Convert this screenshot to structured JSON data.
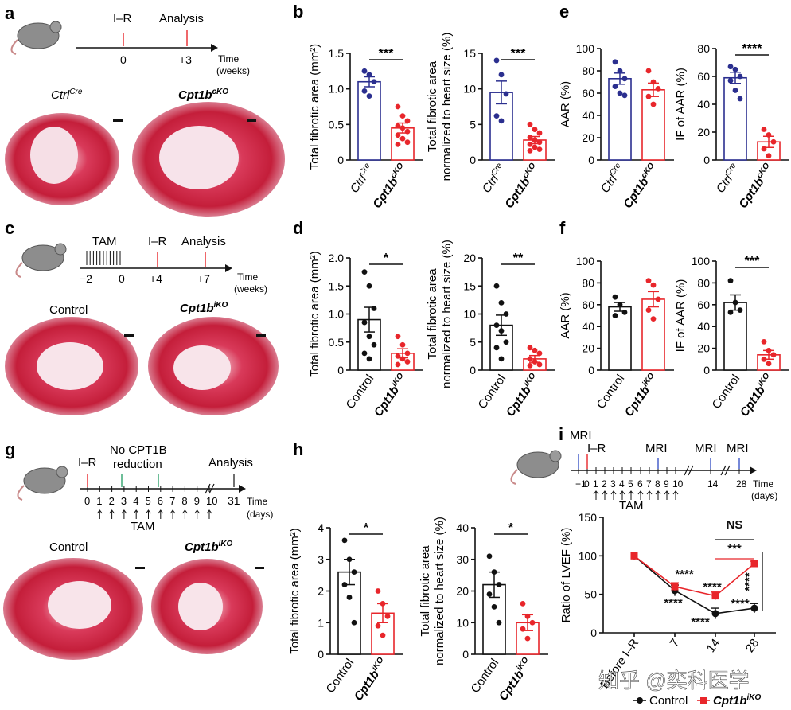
{
  "panels": [
    {
      "letter": "a",
      "text": [
        "I–R",
        "Analysis",
        "0",
        "+3",
        "Time",
        "(weeks)",
        "Ctrl",
        "Cre",
        "Cpt1b",
        "cKO"
      ]
    },
    {
      "letter": "c",
      "text": [
        "TAM",
        "I–R",
        "Analysis",
        "−2",
        "0",
        "+4",
        "+7",
        "Time",
        "(weeks)",
        "Control",
        "Cpt1b",
        "iKO"
      ]
    },
    {
      "letter": "g",
      "text": [
        "I–R",
        "No CPT1B",
        "reduction",
        "Analysis",
        "0",
        "1",
        "2",
        "3",
        "4",
        "5",
        "6",
        "7",
        "8",
        "9",
        "10",
        "31",
        "Time",
        "(days)",
        "TAM",
        "Control",
        "Cpt1b",
        "iKO"
      ]
    },
    {
      "letter": "i",
      "text": [
        "MRI",
        "I–R",
        "MRI",
        "MRI",
        "MRI",
        "−1",
        "0",
        "1",
        "2",
        "3",
        "4",
        "5",
        "6",
        "7",
        "8",
        "9",
        "10",
        "14",
        "28",
        "Time",
        "(days)",
        "TAM"
      ]
    }
  ],
  "watermark": "知乎 @奕科医学",
  "colors": {
    "control": "#2b2f8f",
    "ko": "#e8262b",
    "black": "#111111",
    "heart": "#c41e3a"
  },
  "chart_data": [
    {
      "id": "b1",
      "panel": "b",
      "type": "bar",
      "ylabel": "Total fibrotic area (mm²)",
      "ylim": [
        0,
        1.5
      ],
      "yticks": [
        "0",
        "0.5",
        "1.0",
        "1.5"
      ],
      "categories": [
        "Ctrl",
        "Cpt1b"
      ],
      "cat_sup": [
        "Cre",
        "cKO"
      ],
      "italic": true,
      "values": [
        1.1,
        0.45
      ],
      "sem": [
        0.07,
        0.07
      ],
      "points": [
        [
          1.25,
          1.2,
          1.1,
          0.97,
          0.9
        ],
        [
          0.75,
          0.62,
          0.55,
          0.48,
          0.45,
          0.4,
          0.35,
          0.3,
          0.25,
          0.22
        ]
      ],
      "colors": [
        "control",
        "ko"
      ],
      "sig": "***"
    },
    {
      "id": "b2",
      "panel": "b",
      "type": "bar",
      "ylabel": "Total fibrotic area normalized to heart size (%)",
      "ylim": [
        0,
        15
      ],
      "yticks": [
        "0",
        "5",
        "10",
        "15"
      ],
      "categories": [
        "Ctrl",
        "Cpt1b"
      ],
      "cat_sup": [
        "Cre",
        "cKO"
      ],
      "italic": true,
      "values": [
        9.5,
        2.8
      ],
      "sem": [
        1.6,
        0.5
      ],
      "points": [
        [
          14,
          12,
          9.3,
          6.2,
          5.5
        ],
        [
          5,
          4.3,
          3.8,
          3.2,
          2.8,
          2.5,
          2.2,
          1.8,
          1.5,
          1.3
        ]
      ],
      "colors": [
        "control",
        "ko"
      ],
      "sig": "***"
    },
    {
      "id": "e1",
      "panel": "e",
      "type": "bar",
      "ylabel": "AAR (%)",
      "ylim": [
        0,
        100
      ],
      "yticks": [
        "0",
        "20",
        "40",
        "60",
        "80",
        "100"
      ],
      "categories": [
        "Ctrl",
        "Cpt1b"
      ],
      "cat_sup": [
        "Cre",
        "cKO"
      ],
      "italic": true,
      "values": [
        73,
        63
      ],
      "sem": [
        5,
        6
      ],
      "points": [
        [
          88,
          80,
          73,
          66,
          60,
          58
        ],
        [
          80,
          70,
          64,
          57,
          50
        ]
      ],
      "colors": [
        "control",
        "ko"
      ],
      "sig": ""
    },
    {
      "id": "e2",
      "panel": "e",
      "type": "bar",
      "ylabel": "IF of AAR (%)",
      "ylim": [
        0,
        80
      ],
      "yticks": [
        "0",
        "20",
        "40",
        "60",
        "80"
      ],
      "categories": [
        "Ctrl",
        "Cpt1b"
      ],
      "cat_sup": [
        "Cre",
        "cKO"
      ],
      "italic": true,
      "values": [
        59,
        13
      ],
      "sem": [
        4,
        4
      ],
      "points": [
        [
          67,
          65,
          60,
          57,
          50,
          44
        ],
        [
          22,
          18,
          13,
          8,
          3
        ]
      ],
      "colors": [
        "control",
        "ko"
      ],
      "sig": "****"
    },
    {
      "id": "d1",
      "panel": "d",
      "type": "bar",
      "ylabel": "Total fibrotic area (mm²)",
      "ylim": [
        0,
        2.0
      ],
      "yticks": [
        "0",
        "0.5",
        "1.0",
        "1.5",
        "2.0"
      ],
      "categories": [
        "Control",
        "Cpt1b"
      ],
      "cat_sup": [
        "",
        "iKO"
      ],
      "italic": false,
      "values": [
        0.9,
        0.3
      ],
      "sem": [
        0.22,
        0.08
      ],
      "points": [
        [
          1.75,
          1.5,
          1.1,
          0.85,
          0.6,
          0.45,
          0.3,
          0.2
        ],
        [
          0.6,
          0.45,
          0.3,
          0.25,
          0.2,
          0.15,
          0.1
        ]
      ],
      "colors": [
        "black",
        "ko"
      ],
      "sig": "*"
    },
    {
      "id": "d2",
      "panel": "d",
      "type": "bar",
      "ylabel": "Total fibrotic area normalized to heart size (%)",
      "ylim": [
        0,
        20
      ],
      "yticks": [
        "0",
        "5",
        "10",
        "15",
        "20"
      ],
      "categories": [
        "Control",
        "Cpt1b"
      ],
      "cat_sup": [
        "",
        "iKO"
      ],
      "italic": false,
      "values": [
        8,
        2
      ],
      "sem": [
        1.8,
        0.6
      ],
      "points": [
        [
          15,
          12,
          10,
          8,
          7,
          5,
          4,
          2
        ],
        [
          4,
          3.5,
          3,
          2,
          1.5,
          1,
          0.8
        ]
      ],
      "colors": [
        "black",
        "ko"
      ],
      "sig": "**"
    },
    {
      "id": "f1",
      "panel": "f",
      "type": "bar",
      "ylabel": "AAR (%)",
      "ylim": [
        0,
        100
      ],
      "yticks": [
        "0",
        "20",
        "40",
        "60",
        "80",
        "100"
      ],
      "categories": [
        "Control",
        "Cpt1b"
      ],
      "cat_sup": [
        "",
        "iKO"
      ],
      "italic": false,
      "values": [
        58,
        65
      ],
      "sem": [
        4,
        7
      ],
      "points": [
        [
          67,
          60,
          53,
          50
        ],
        [
          82,
          78,
          65,
          55,
          47
        ]
      ],
      "colors": [
        "black",
        "ko"
      ],
      "sig": ""
    },
    {
      "id": "f2",
      "panel": "f",
      "type": "bar",
      "ylabel": "IF of AAR (%)",
      "ylim": [
        0,
        100
      ],
      "yticks": [
        "0",
        "20",
        "40",
        "60",
        "80",
        "100"
      ],
      "categories": [
        "Control",
        "Cpt1b"
      ],
      "cat_sup": [
        "",
        "iKO"
      ],
      "italic": false,
      "values": [
        62,
        14
      ],
      "sem": [
        7,
        4
      ],
      "points": [
        [
          82,
          62,
          55,
          53
        ],
        [
          26,
          18,
          14,
          10,
          6
        ]
      ],
      "colors": [
        "black",
        "ko"
      ],
      "sig": "***"
    },
    {
      "id": "h1",
      "panel": "h",
      "type": "bar",
      "ylabel": "Total fibrotic area (mm²)",
      "ylim": [
        0,
        4
      ],
      "yticks": [
        "0",
        "1",
        "2",
        "3",
        "4"
      ],
      "categories": [
        "Control",
        "Cpt1b"
      ],
      "cat_sup": [
        "",
        "iKO"
      ],
      "italic": false,
      "values": [
        2.6,
        1.3
      ],
      "sem": [
        0.4,
        0.3
      ],
      "points": [
        [
          3.6,
          3.0,
          2.6,
          2.2,
          1.8,
          1.0
        ],
        [
          2.0,
          1.6,
          1.2,
          0.9,
          0.6
        ]
      ],
      "colors": [
        "black",
        "ko"
      ],
      "sig": "*"
    },
    {
      "id": "h2",
      "panel": "h",
      "type": "bar",
      "ylabel": "Total fibrotic area normalized to heart size (%)",
      "ylim": [
        0,
        40
      ],
      "yticks": [
        "0",
        "10",
        "20",
        "30",
        "40"
      ],
      "categories": [
        "Control",
        "Cpt1b"
      ],
      "cat_sup": [
        "",
        "iKO"
      ],
      "italic": false,
      "values": [
        22,
        10
      ],
      "sem": [
        4,
        2.5
      ],
      "points": [
        [
          31,
          26,
          22,
          19,
          15,
          10
        ],
        [
          16,
          12,
          10,
          8,
          5
        ]
      ],
      "colors": [
        "black",
        "ko"
      ],
      "sig": "*"
    },
    {
      "id": "i",
      "panel": "i",
      "type": "line",
      "ylabel": "Ratio of LVEF (%)",
      "ylim": [
        0,
        150
      ],
      "yticks": [
        "0",
        "50",
        "100",
        "150"
      ],
      "x": [
        "Before I–R",
        "7",
        "14",
        "28"
      ],
      "series": [
        {
          "name": "Control",
          "color": "black",
          "values": [
            100,
            55,
            25,
            32
          ],
          "sem": [
            0,
            7,
            7,
            6
          ]
        },
        {
          "name": "Cpt1b",
          "sup": "iKO",
          "color": "ko",
          "values": [
            100,
            60,
            48,
            90
          ],
          "sem": [
            0,
            5,
            5,
            3
          ]
        }
      ],
      "annotations": [
        "NS",
        "***",
        "****",
        "****",
        "****",
        "****",
        "****",
        "****"
      ]
    }
  ]
}
